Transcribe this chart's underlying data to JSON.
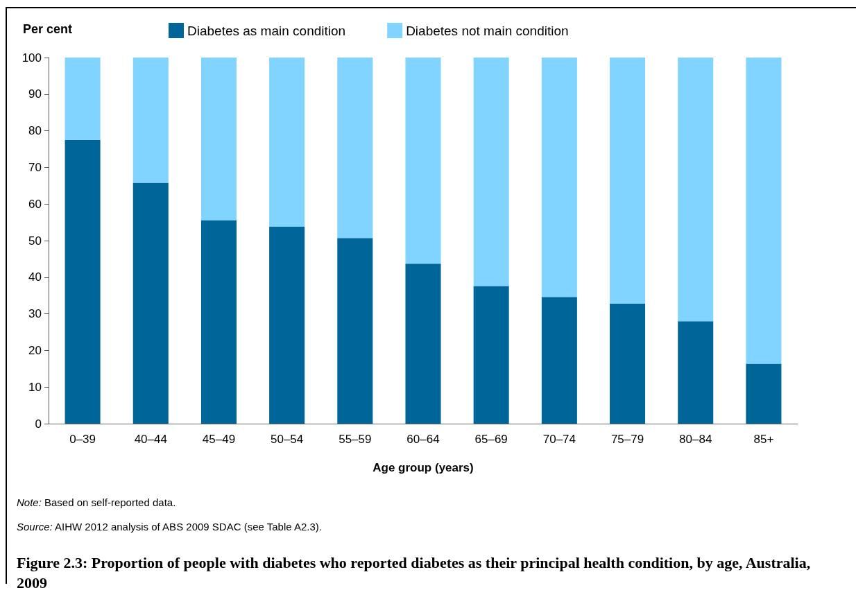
{
  "chart_data": {
    "type": "bar",
    "stacked": true,
    "title": "Figure 2.3: Proportion of people with diabetes who reported diabetes as their principal health condition, by age, Australia, 2009",
    "ylabel": "Per cent",
    "xlabel": "Age group (years)",
    "categories": [
      "0–39",
      "40–44",
      "45–49",
      "50–54",
      "55–59",
      "60–64",
      "65–69",
      "70–74",
      "75–79",
      "80–84",
      "85+"
    ],
    "series": [
      {
        "name": "Diabetes as main condition",
        "color": "#006699",
        "values": [
          77.5,
          65.8,
          55.6,
          53.8,
          50.7,
          43.7,
          37.6,
          34.6,
          32.8,
          28.0,
          16.4
        ]
      },
      {
        "name": "Diabetes not main condition",
        "color": "#80d4ff",
        "values": [
          22.5,
          34.2,
          44.4,
          46.2,
          49.3,
          56.3,
          62.4,
          65.4,
          67.2,
          72.0,
          83.6
        ]
      }
    ],
    "ylim": [
      0,
      100
    ],
    "yticks": [
      0,
      10,
      20,
      30,
      40,
      50,
      60,
      70,
      80,
      90,
      100
    ],
    "grid": false,
    "legend": "top",
    "annotations": [
      "Note: Based on self-reported data.",
      "Source: AIHW 2012 analysis of ABS 2009 SDAC (see Table A2.3)."
    ]
  }
}
